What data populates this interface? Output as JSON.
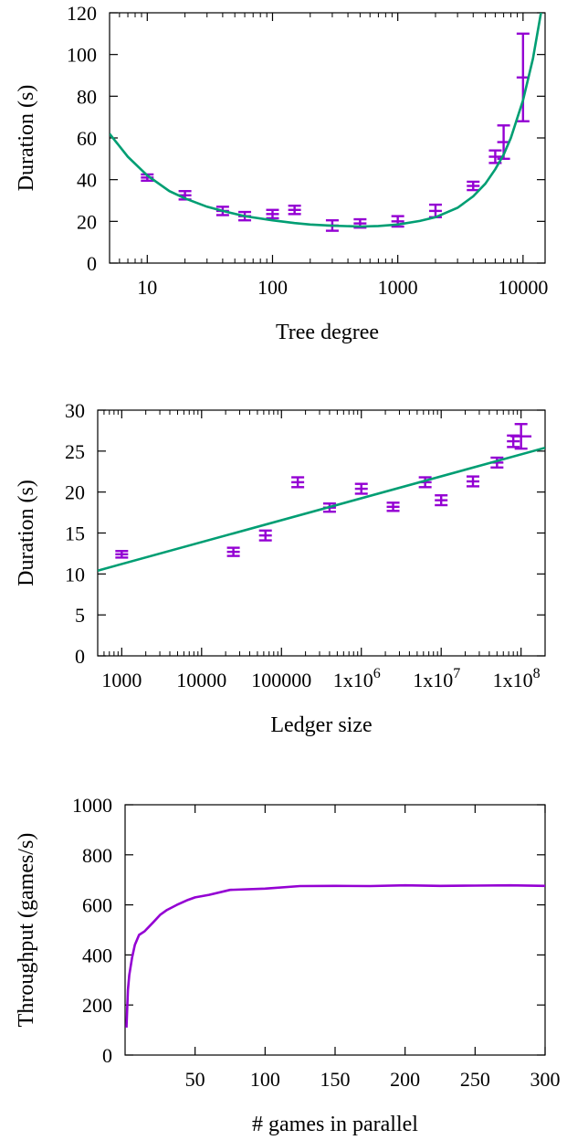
{
  "colors": {
    "points": "#9400D3",
    "fit": "#009E73",
    "axis": "#000000"
  },
  "chart_data": [
    {
      "type": "scatter",
      "xlabel": "Tree degree",
      "ylabel": "Duration (s)",
      "xscale": "log",
      "xlim": [
        5,
        15000
      ],
      "ylim": [
        0,
        120
      ],
      "xticks": [
        10,
        100,
        1000,
        10000
      ],
      "xtick_labels": [
        "10",
        "100",
        "1000",
        "10000"
      ],
      "yticks": [
        0,
        20,
        40,
        60,
        80,
        100,
        120
      ],
      "ytick_labels": [
        "0",
        "20",
        "40",
        "60",
        "80",
        "100",
        "120"
      ],
      "grid": false,
      "series": [
        {
          "kind": "points_with_error_bars",
          "x": [
            10,
            20,
            40,
            60,
            100,
            150,
            300,
            500,
            1000,
            2000,
            4000,
            6000,
            7000,
            10000
          ],
          "y": [
            41,
            32.5,
            25,
            22.5,
            23.5,
            25.5,
            18,
            19,
            20,
            25,
            37,
            51,
            58,
            89
          ],
          "err": [
            1.5,
            2,
            2,
            2,
            2,
            2,
            2.5,
            2,
            2.5,
            3,
            2,
            3,
            8,
            21
          ]
        },
        {
          "kind": "fit_line",
          "x": [
            5,
            7,
            10,
            15,
            20,
            30,
            40,
            60,
            100,
            150,
            200,
            300,
            500,
            700,
            1000,
            1500,
            2000,
            3000,
            4000,
            5000,
            6000,
            7000,
            8000,
            10000,
            12000,
            14000
          ],
          "y": [
            62,
            51,
            42,
            34.5,
            31,
            27,
            25,
            22.5,
            20.5,
            19.2,
            18.5,
            17.9,
            17.5,
            17.8,
            18.5,
            20.2,
            22,
            26.5,
            32,
            38,
            45,
            52,
            60,
            78,
            98,
            121
          ]
        }
      ]
    },
    {
      "type": "scatter",
      "xlabel": "Ledger size",
      "ylabel": "Duration (s)",
      "xscale": "log",
      "xlim": [
        500,
        200000000
      ],
      "ylim": [
        0,
        30
      ],
      "xticks": [
        1000,
        10000,
        100000,
        1000000,
        10000000,
        100000000
      ],
      "xtick_labels": [
        "1000",
        "10000",
        "100000",
        "1x10",
        "1x10",
        "1x10"
      ],
      "xtick_superscripts": [
        "",
        "",
        "",
        "6",
        "7",
        "8"
      ],
      "yticks": [
        0,
        5,
        10,
        15,
        20,
        25,
        30
      ],
      "ytick_labels": [
        "0",
        "5",
        "10",
        "15",
        "20",
        "25",
        "30"
      ],
      "grid": false,
      "series": [
        {
          "kind": "points_with_error_bars",
          "x": [
            1000,
            25000,
            63000,
            160000,
            400000,
            1000000,
            2500000,
            6300000,
            10000000,
            25000000,
            50000000,
            80000000,
            100000000
          ],
          "y": [
            12.4,
            12.7,
            14.7,
            21.2,
            18.1,
            20.4,
            18.2,
            21.2,
            19.0,
            21.3,
            23.6,
            26.2,
            26.8
          ],
          "err": [
            0.4,
            0.5,
            0.6,
            0.6,
            0.5,
            0.6,
            0.5,
            0.6,
            0.6,
            0.6,
            0.6,
            0.7,
            1.5
          ],
          "xerr_factor": [
            1,
            1,
            1,
            1,
            1,
            1,
            1,
            1,
            1,
            1,
            1,
            1,
            1.35
          ]
        },
        {
          "kind": "fit_line",
          "x": [
            500,
            200000000
          ],
          "y": [
            10.4,
            25.4
          ]
        }
      ]
    },
    {
      "type": "line",
      "xlabel": "# games in parallel",
      "ylabel": "Throughput (games/s)",
      "xlim": [
        0,
        300
      ],
      "ylim": [
        0,
        1000
      ],
      "xticks": [
        50,
        100,
        150,
        200,
        250,
        300
      ],
      "xtick_labels": [
        "50",
        "100",
        "150",
        "200",
        "250",
        "300"
      ],
      "yticks": [
        0,
        200,
        400,
        600,
        800,
        1000
      ],
      "ytick_labels": [
        "0",
        "200",
        "400",
        "600",
        "800",
        "1000"
      ],
      "grid": false,
      "series": [
        {
          "kind": "line",
          "x": [
            1,
            2,
            3,
            5,
            7,
            10,
            14,
            20,
            25,
            30,
            37,
            45,
            50,
            60,
            75,
            100,
            125,
            150,
            175,
            200,
            225,
            250,
            275,
            300
          ],
          "y": [
            110,
            260,
            320,
            390,
            440,
            480,
            495,
            530,
            560,
            580,
            600,
            620,
            630,
            640,
            660,
            665,
            675,
            676,
            675,
            678,
            676,
            677,
            678,
            676
          ]
        }
      ]
    }
  ]
}
